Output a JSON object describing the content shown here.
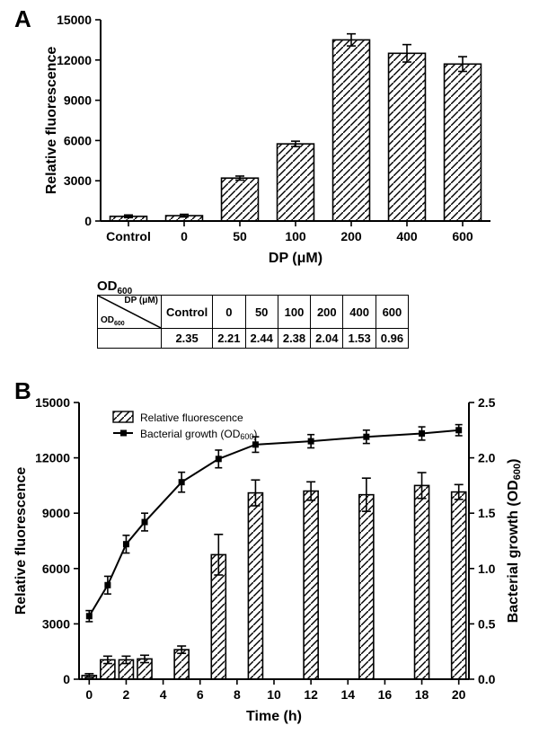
{
  "panelA": {
    "label": "A",
    "chart": {
      "type": "bar",
      "ylabel": "Relative fluorescence",
      "xlabel": "DP (μM)",
      "categories": [
        "Control",
        "0",
        "50",
        "100",
        "200",
        "400",
        "600"
      ],
      "values": [
        350,
        400,
        3200,
        5750,
        13500,
        12500,
        11700
      ],
      "errors": [
        100,
        100,
        150,
        200,
        450,
        650,
        550
      ],
      "ylim": [
        0,
        15000
      ],
      "ytick_step": 3000,
      "bar_color": "#ffffff",
      "bar_border": "#000000",
      "hatch_color": "#000000",
      "background_color": "#ffffff",
      "axis_color": "#000000",
      "tick_fontsize": 14,
      "label_fontsize": 16
    },
    "od_table": {
      "title": "OD₆₀₀",
      "col_header_label": "DP (μM)",
      "row_header_label": "OD₆₀₀",
      "columns": [
        "Control",
        "0",
        "50",
        "100",
        "200",
        "400",
        "600"
      ],
      "row": [
        "2.35",
        "2.21",
        "2.44",
        "2.38",
        "2.04",
        "1.53",
        "0.96"
      ]
    }
  },
  "panelB": {
    "label": "B",
    "chart": {
      "type": "bar_line_dual_axis",
      "ylabel_left": "Relative fluorescence",
      "ylabel_right": "Bacterial growth (OD       )",
      "ylabel_right_sub": "600",
      "xlabel": "Time (h)",
      "legend_bar": "Relative fluorescence",
      "legend_line": "Bacterial growth (OD₆₀₀)",
      "x_ticks": [
        0,
        2,
        4,
        6,
        8,
        10,
        12,
        14,
        16,
        18,
        20
      ],
      "bar_x": [
        0,
        1,
        2,
        3,
        5,
        7,
        9,
        12,
        15,
        18,
        20
      ],
      "bar_values": [
        200,
        1050,
        1050,
        1100,
        1600,
        6750,
        10100,
        10200,
        10000,
        10500,
        10150
      ],
      "bar_errors": [
        100,
        200,
        200,
        200,
        200,
        1100,
        700,
        500,
        900,
        700,
        400
      ],
      "line_x": [
        0,
        1,
        2,
        3,
        5,
        7,
        9,
        12,
        15,
        18,
        20
      ],
      "line_y": [
        0.57,
        0.85,
        1.22,
        1.42,
        1.78,
        1.99,
        2.12,
        2.15,
        2.19,
        2.22,
        2.25
      ],
      "line_errors": [
        0.05,
        0.08,
        0.08,
        0.08,
        0.09,
        0.08,
        0.07,
        0.06,
        0.06,
        0.06,
        0.05
      ],
      "ylim_left": [
        0,
        15000
      ],
      "ytick_left_step": 3000,
      "ylim_right": [
        0.0,
        2.5
      ],
      "ytick_right_step": 0.5,
      "xlim": [
        0,
        20
      ],
      "bar_color": "#ffffff",
      "bar_border": "#000000",
      "hatch_color": "#000000",
      "line_color": "#000000",
      "marker": "square",
      "marker_size": 7,
      "background_color": "#ffffff",
      "axis_color": "#000000",
      "tick_fontsize": 14,
      "label_fontsize": 16
    }
  }
}
